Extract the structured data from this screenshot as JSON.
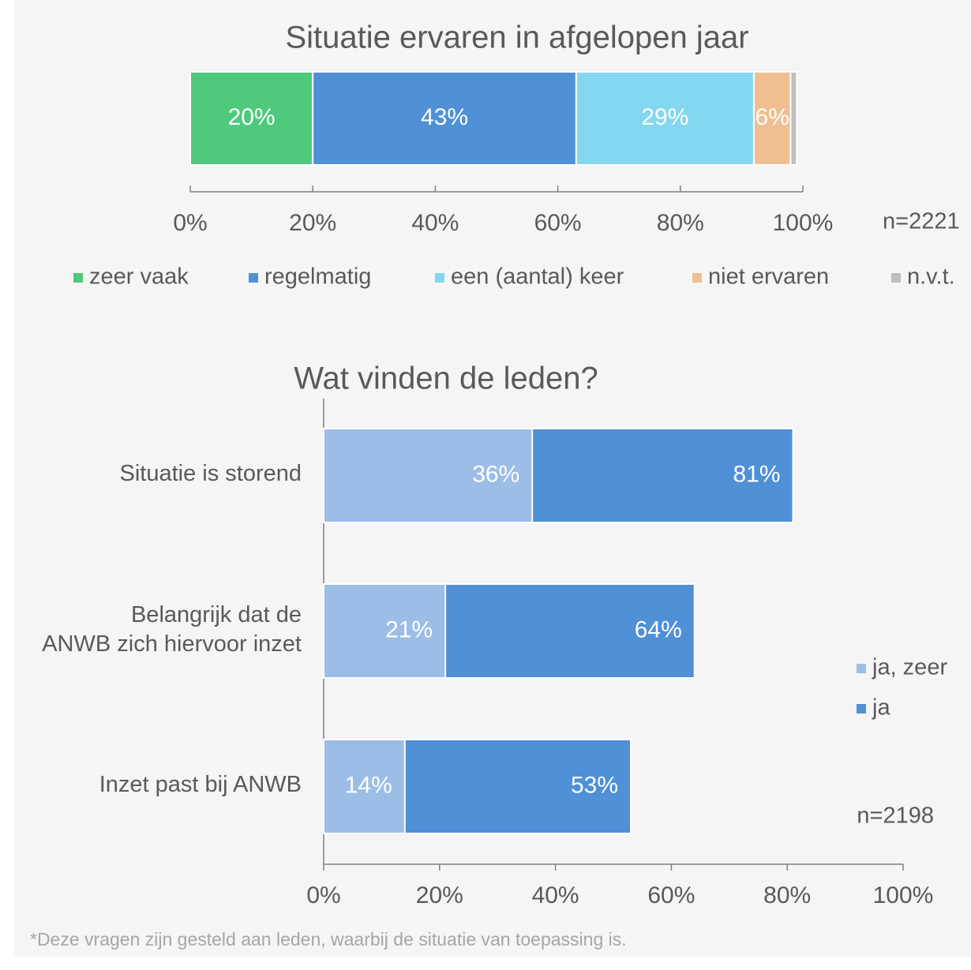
{
  "chart_data": [
    {
      "type": "bar",
      "orientation": "horizontal",
      "stacked": true,
      "title": "Situatie ervaren in afgelopen jaar",
      "annotation": "n=2221",
      "series": [
        {
          "name": "zeer vaak",
          "color": "#4fc97c",
          "values": [
            20
          ],
          "value_labels": [
            "20%"
          ]
        },
        {
          "name": "regelmatig",
          "color": "#4f90d6",
          "values": [
            43
          ],
          "value_labels": [
            "43%"
          ]
        },
        {
          "name": "een (aantal) keer",
          "color": "#83d7ee",
          "values": [
            29
          ],
          "value_labels": [
            "29%"
          ]
        },
        {
          "name": "niet ervaren",
          "color": "#f0bf8f",
          "values": [
            6
          ],
          "value_labels": [
            "6%"
          ]
        },
        {
          "name": "n.v.t.",
          "color": "#bfbfbf",
          "values": [
            1
          ],
          "value_labels": [
            null
          ]
        }
      ],
      "xlim": [
        0,
        100
      ],
      "xticks": [
        {
          "value": 0,
          "label": "0%"
        },
        {
          "value": 20,
          "label": "20%"
        },
        {
          "value": 40,
          "label": "40%"
        },
        {
          "value": 60,
          "label": "60%"
        },
        {
          "value": 80,
          "label": "80%"
        },
        {
          "value": 100,
          "label": "100%"
        }
      ],
      "legend": "bottom"
    },
    {
      "type": "bar",
      "orientation": "horizontal",
      "overlap": true,
      "title": "Wat vinden de leden?",
      "annotation": "n=2198",
      "categories": [
        "Situatie is storend",
        "Belangrijk dat de\nANWB zich hiervoor inzet",
        "Inzet past bij ANWB"
      ],
      "series": [
        {
          "name": "ja, zeer",
          "color": "#9bbde6",
          "values": [
            36,
            21,
            14
          ],
          "value_labels": [
            "36%",
            "21%",
            "14%"
          ]
        },
        {
          "name": "ja",
          "color": "#4f90d6",
          "values": [
            81,
            64,
            53
          ],
          "value_labels": [
            "81%",
            "64%",
            "53%"
          ]
        }
      ],
      "xlim": [
        0,
        100
      ],
      "xticks": [
        {
          "value": 0,
          "label": "0%"
        },
        {
          "value": 20,
          "label": "20%"
        },
        {
          "value": 40,
          "label": "40%"
        },
        {
          "value": 60,
          "label": "60%"
        },
        {
          "value": 80,
          "label": "80%"
        },
        {
          "value": 100,
          "label": "100%"
        }
      ],
      "legend": "right"
    }
  ],
  "footnote": "*Deze vragen zijn gesteld aan leden, waarbij de situatie van toepassing is."
}
